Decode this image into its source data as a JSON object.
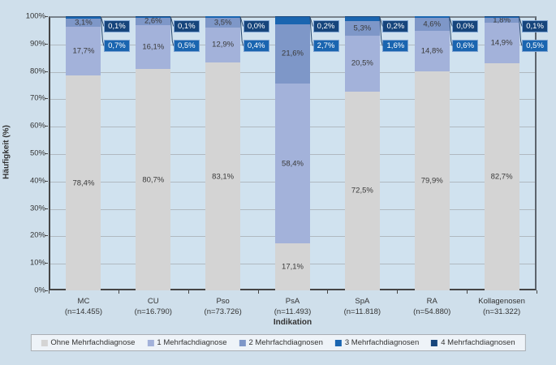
{
  "chart_data": {
    "type": "bar",
    "stacked": true,
    "orientation": "vertical",
    "title": "",
    "xlabel": "Indikation",
    "ylabel": "Häufigkeit (%)",
    "ylim": [
      0,
      100
    ],
    "ytick_step": 10,
    "ytick_labels": [
      "0%",
      "10%",
      "20%",
      "30%",
      "40%",
      "50%",
      "60%",
      "70%",
      "80%",
      "90%",
      "100%"
    ],
    "grid": true,
    "legend_position": "bottom",
    "number_format": "german-comma-percent",
    "categories": [
      "MC",
      "CU",
      "Pso",
      "PsA",
      "SpA",
      "RA",
      "Kollagenosen"
    ],
    "category_sublabels": [
      "(n=14.455)",
      "(n=16.790)",
      "(n=73.726)",
      "(n=11.493)",
      "(n=11.818)",
      "(n=54.880)",
      "(n=31.322)"
    ],
    "series": [
      {
        "name": "Ohne Mehrfachdiagnose",
        "color": "#d4d4d4",
        "label_style": "inside",
        "values": [
          78.4,
          80.7,
          83.1,
          17.1,
          72.5,
          79.9,
          82.7
        ]
      },
      {
        "name": "1 Mehrfachdiagnose",
        "color": "#a3b2da",
        "label_style": "inside",
        "values": [
          17.7,
          16.1,
          12.9,
          58.4,
          20.5,
          14.8,
          14.9
        ]
      },
      {
        "name": "2 Mehrfachdiagnosen",
        "color": "#7e97c8",
        "label_style": "inside",
        "values": [
          3.1,
          2.6,
          3.5,
          21.6,
          5.3,
          4.6,
          1.8
        ]
      },
      {
        "name": "3 Mehrfachdiagnosen",
        "color": "#1a65b0",
        "label_style": "callout",
        "values": [
          0.7,
          0.5,
          0.4,
          2.7,
          1.6,
          0.6,
          0.5
        ]
      },
      {
        "name": "4 Mehrfachdiagnosen",
        "color": "#16457c",
        "label_style": "callout",
        "values": [
          0.1,
          0.1,
          0.0,
          0.2,
          0.2,
          0.0,
          0.1
        ]
      }
    ],
    "colors": {
      "page_background": "#cfdfeb",
      "plot_background": "#d0e2ef",
      "gridline": "#b0b9c0",
      "axis": "#454545",
      "callout_border": "#7ea4d2",
      "callout_text": "#ffffff"
    }
  }
}
